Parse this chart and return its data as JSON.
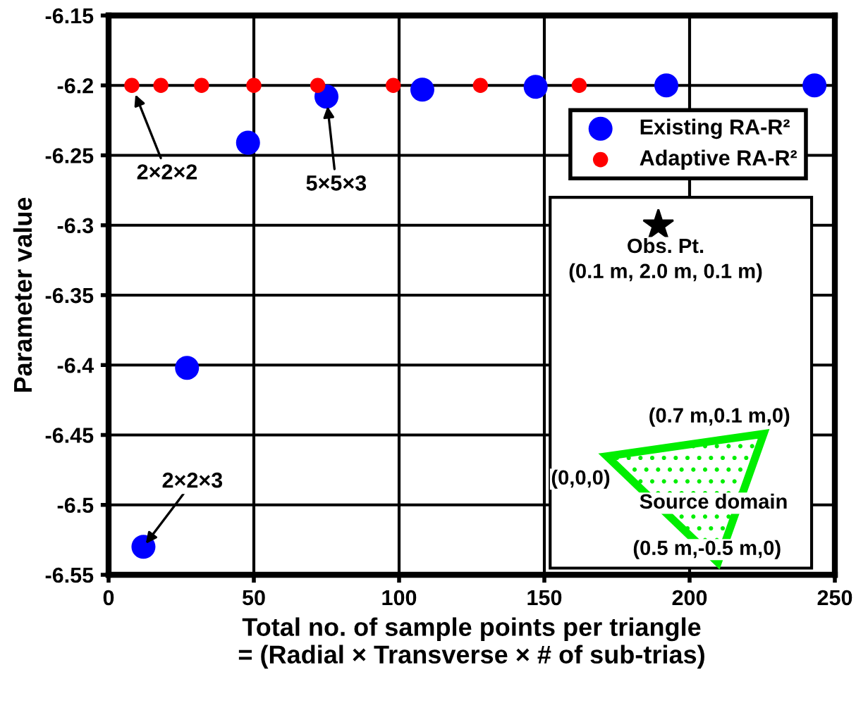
{
  "chart_data": {
    "type": "scatter",
    "xlabel": "Total no. of sample points per triangle\n= (Radial × Transverse × # of sub-trias)",
    "ylabel": "Parameter value",
    "xlim": [
      0,
      250
    ],
    "xticks": [
      0,
      50,
      100,
      150,
      200,
      250
    ],
    "ylim": [
      -6.55,
      -6.15
    ],
    "yticks": [
      -6.55,
      -6.5,
      -6.45,
      -6.4,
      -6.35,
      -6.3,
      -6.25,
      -6.2,
      -6.15
    ],
    "grid": true,
    "legend": "top right",
    "marker": "circle",
    "series": [
      {
        "name": "Existing RA-R²",
        "color": "#0000ff",
        "x": [
          12,
          27,
          48,
          75,
          108,
          147,
          192,
          243
        ],
        "values": [
          -6.53,
          -6.402,
          -6.241,
          -6.208,
          -6.203,
          -6.201,
          -6.2,
          -6.2
        ]
      },
      {
        "name": "Adaptive RA-R²",
        "color": "#ff0000",
        "x": [
          8,
          18,
          32,
          50,
          72,
          98,
          128,
          162
        ],
        "values": [
          -6.2,
          -6.2,
          -6.2,
          -6.2,
          -6.2,
          -6.2,
          -6.2,
          -6.2
        ]
      }
    ],
    "annotations": [
      {
        "text": "2×2×2",
        "x": 8,
        "y": -6.2
      },
      {
        "text": "5×5×3",
        "x": 75,
        "y": -6.208
      },
      {
        "text": "2×2×3",
        "x": 12,
        "y": -6.53
      },
      "Obs. Pt.",
      "(0.1 m, 2.0 m, 0.1 m)",
      "(0.7 m,0.1 m,0)",
      "(0,0,0)",
      "Source domain",
      "(0.5 m,-0.5 m,0)"
    ]
  }
}
